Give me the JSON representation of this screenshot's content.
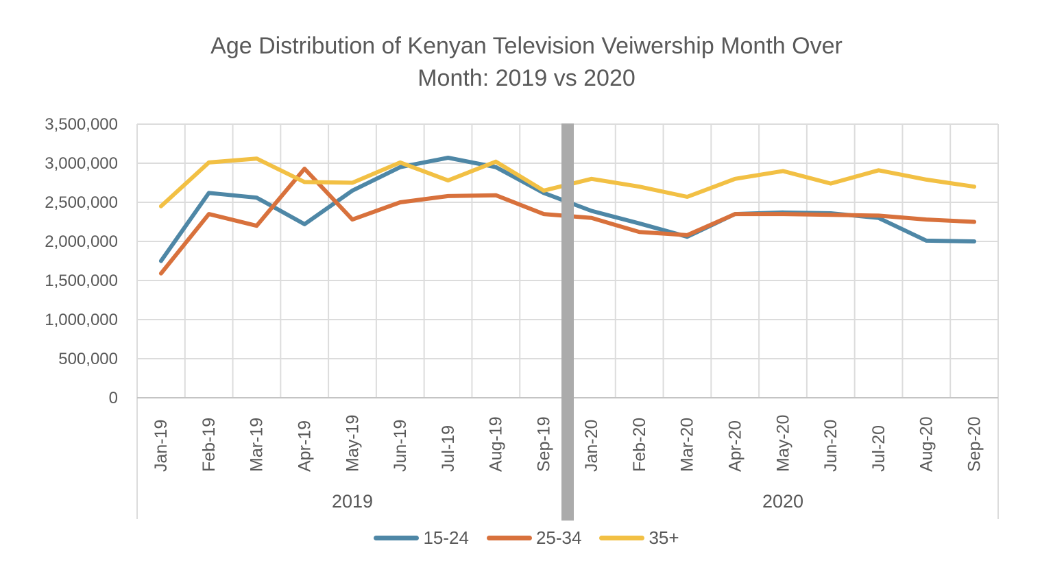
{
  "page": {
    "background": "#FFFFFF"
  },
  "chart_data": {
    "type": "line",
    "title": "Age Distribution of Kenyan Television Veiwership Month Over Month: 2019 vs 2020",
    "title_lines": [
      "Age Distribution of Kenyan Television Veiwership Month Over",
      "Month: 2019 vs 2020"
    ],
    "categories": [
      "Jan-19",
      "Feb-19",
      "Mar-19",
      "Apr-19",
      "May-19",
      "Jun-19",
      "Jul-19",
      "Aug-19",
      "Sep-19",
      "Jan-20",
      "Feb-20",
      "Mar-20",
      "Apr-20",
      "May-20",
      "Jun-20",
      "Jul-20",
      "Aug-20",
      "Sep-20"
    ],
    "year_groups": [
      {
        "label": "2019",
        "count": 9
      },
      {
        "label": "2020",
        "count": 9
      }
    ],
    "series": [
      {
        "name": "15-24",
        "color": "#4E87A6",
        "values": [
          1750000,
          2620000,
          2560000,
          2220000,
          2650000,
          2950000,
          3070000,
          2950000,
          2620000,
          2390000,
          2230000,
          2060000,
          2350000,
          2370000,
          2360000,
          2300000,
          2010000,
          2000000
        ]
      },
      {
        "name": "25-34",
        "color": "#D8713C",
        "values": [
          1590000,
          2350000,
          2200000,
          2930000,
          2280000,
          2500000,
          2580000,
          2590000,
          2350000,
          2300000,
          2120000,
          2080000,
          2350000,
          2350000,
          2340000,
          2330000,
          2280000,
          2250000
        ]
      },
      {
        "name": "35+",
        "color": "#F2C044",
        "values": [
          2450000,
          3010000,
          3060000,
          2760000,
          2750000,
          3010000,
          2780000,
          3020000,
          2650000,
          2800000,
          2700000,
          2570000,
          2800000,
          2900000,
          2740000,
          2910000,
          2790000,
          2700000
        ]
      }
    ],
    "y_axis": {
      "min": 0,
      "max": 3500000,
      "step": 500000,
      "tick_labels": [
        "0",
        "500,000",
        "1,000,000",
        "1,500,000",
        "2,000,000",
        "2,500,000",
        "3,000,000",
        "3,500,000"
      ]
    },
    "divider": {
      "after_category": "Sep-19",
      "color": "#ABABAB"
    },
    "grid": true,
    "legend_position": "bottom",
    "styles": {
      "grid_color": "#DCDCDC",
      "axis_color": "#C4C4C4",
      "text_color": "#595959"
    }
  }
}
